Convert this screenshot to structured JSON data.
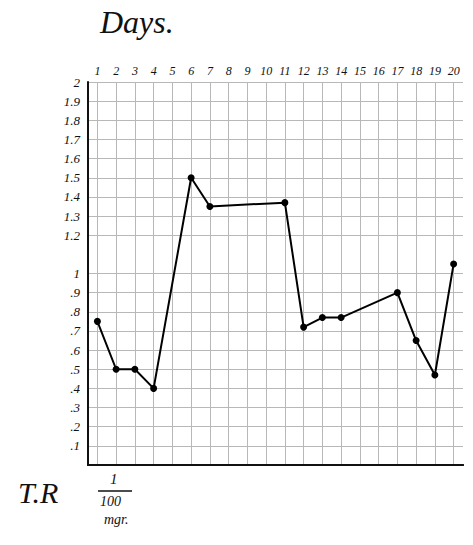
{
  "chart_data": {
    "type": "line",
    "title": "Days.",
    "x": [
      1,
      2,
      3,
      4,
      6,
      7,
      11,
      12,
      13,
      14,
      17,
      18,
      19,
      20
    ],
    "values": [
      0.75,
      0.5,
      0.5,
      0.4,
      1.5,
      1.35,
      1.37,
      0.72,
      0.77,
      0.77,
      0.9,
      0.65,
      0.47,
      1.05
    ],
    "color": "#000000",
    "marker": "circle",
    "xlim": [
      0.5,
      20.5
    ],
    "xticks": [
      1,
      2,
      3,
      4,
      5,
      6,
      7,
      8,
      9,
      10,
      11,
      12,
      13,
      14,
      15,
      16,
      17,
      18,
      19,
      20
    ],
    "ylim": [
      0,
      2
    ],
    "yticks": [
      {
        "value": 0.1,
        "label": ".1"
      },
      {
        "value": 0.2,
        "label": ".2"
      },
      {
        "value": 0.3,
        "label": ".3"
      },
      {
        "value": 0.4,
        "label": ".4"
      },
      {
        "value": 0.5,
        "label": ".5"
      },
      {
        "value": 0.6,
        "label": ".6"
      },
      {
        "value": 0.7,
        "label": ".7"
      },
      {
        "value": 0.8,
        "label": ".8"
      },
      {
        "value": 0.9,
        "label": ".9"
      },
      1,
      1.2,
      1.3,
      1.4,
      1.5,
      1.6,
      1.7,
      1.8,
      1.9,
      2
    ],
    "annotations": [
      "T.R",
      "1",
      "100",
      "mgr."
    ],
    "grid": true
  }
}
